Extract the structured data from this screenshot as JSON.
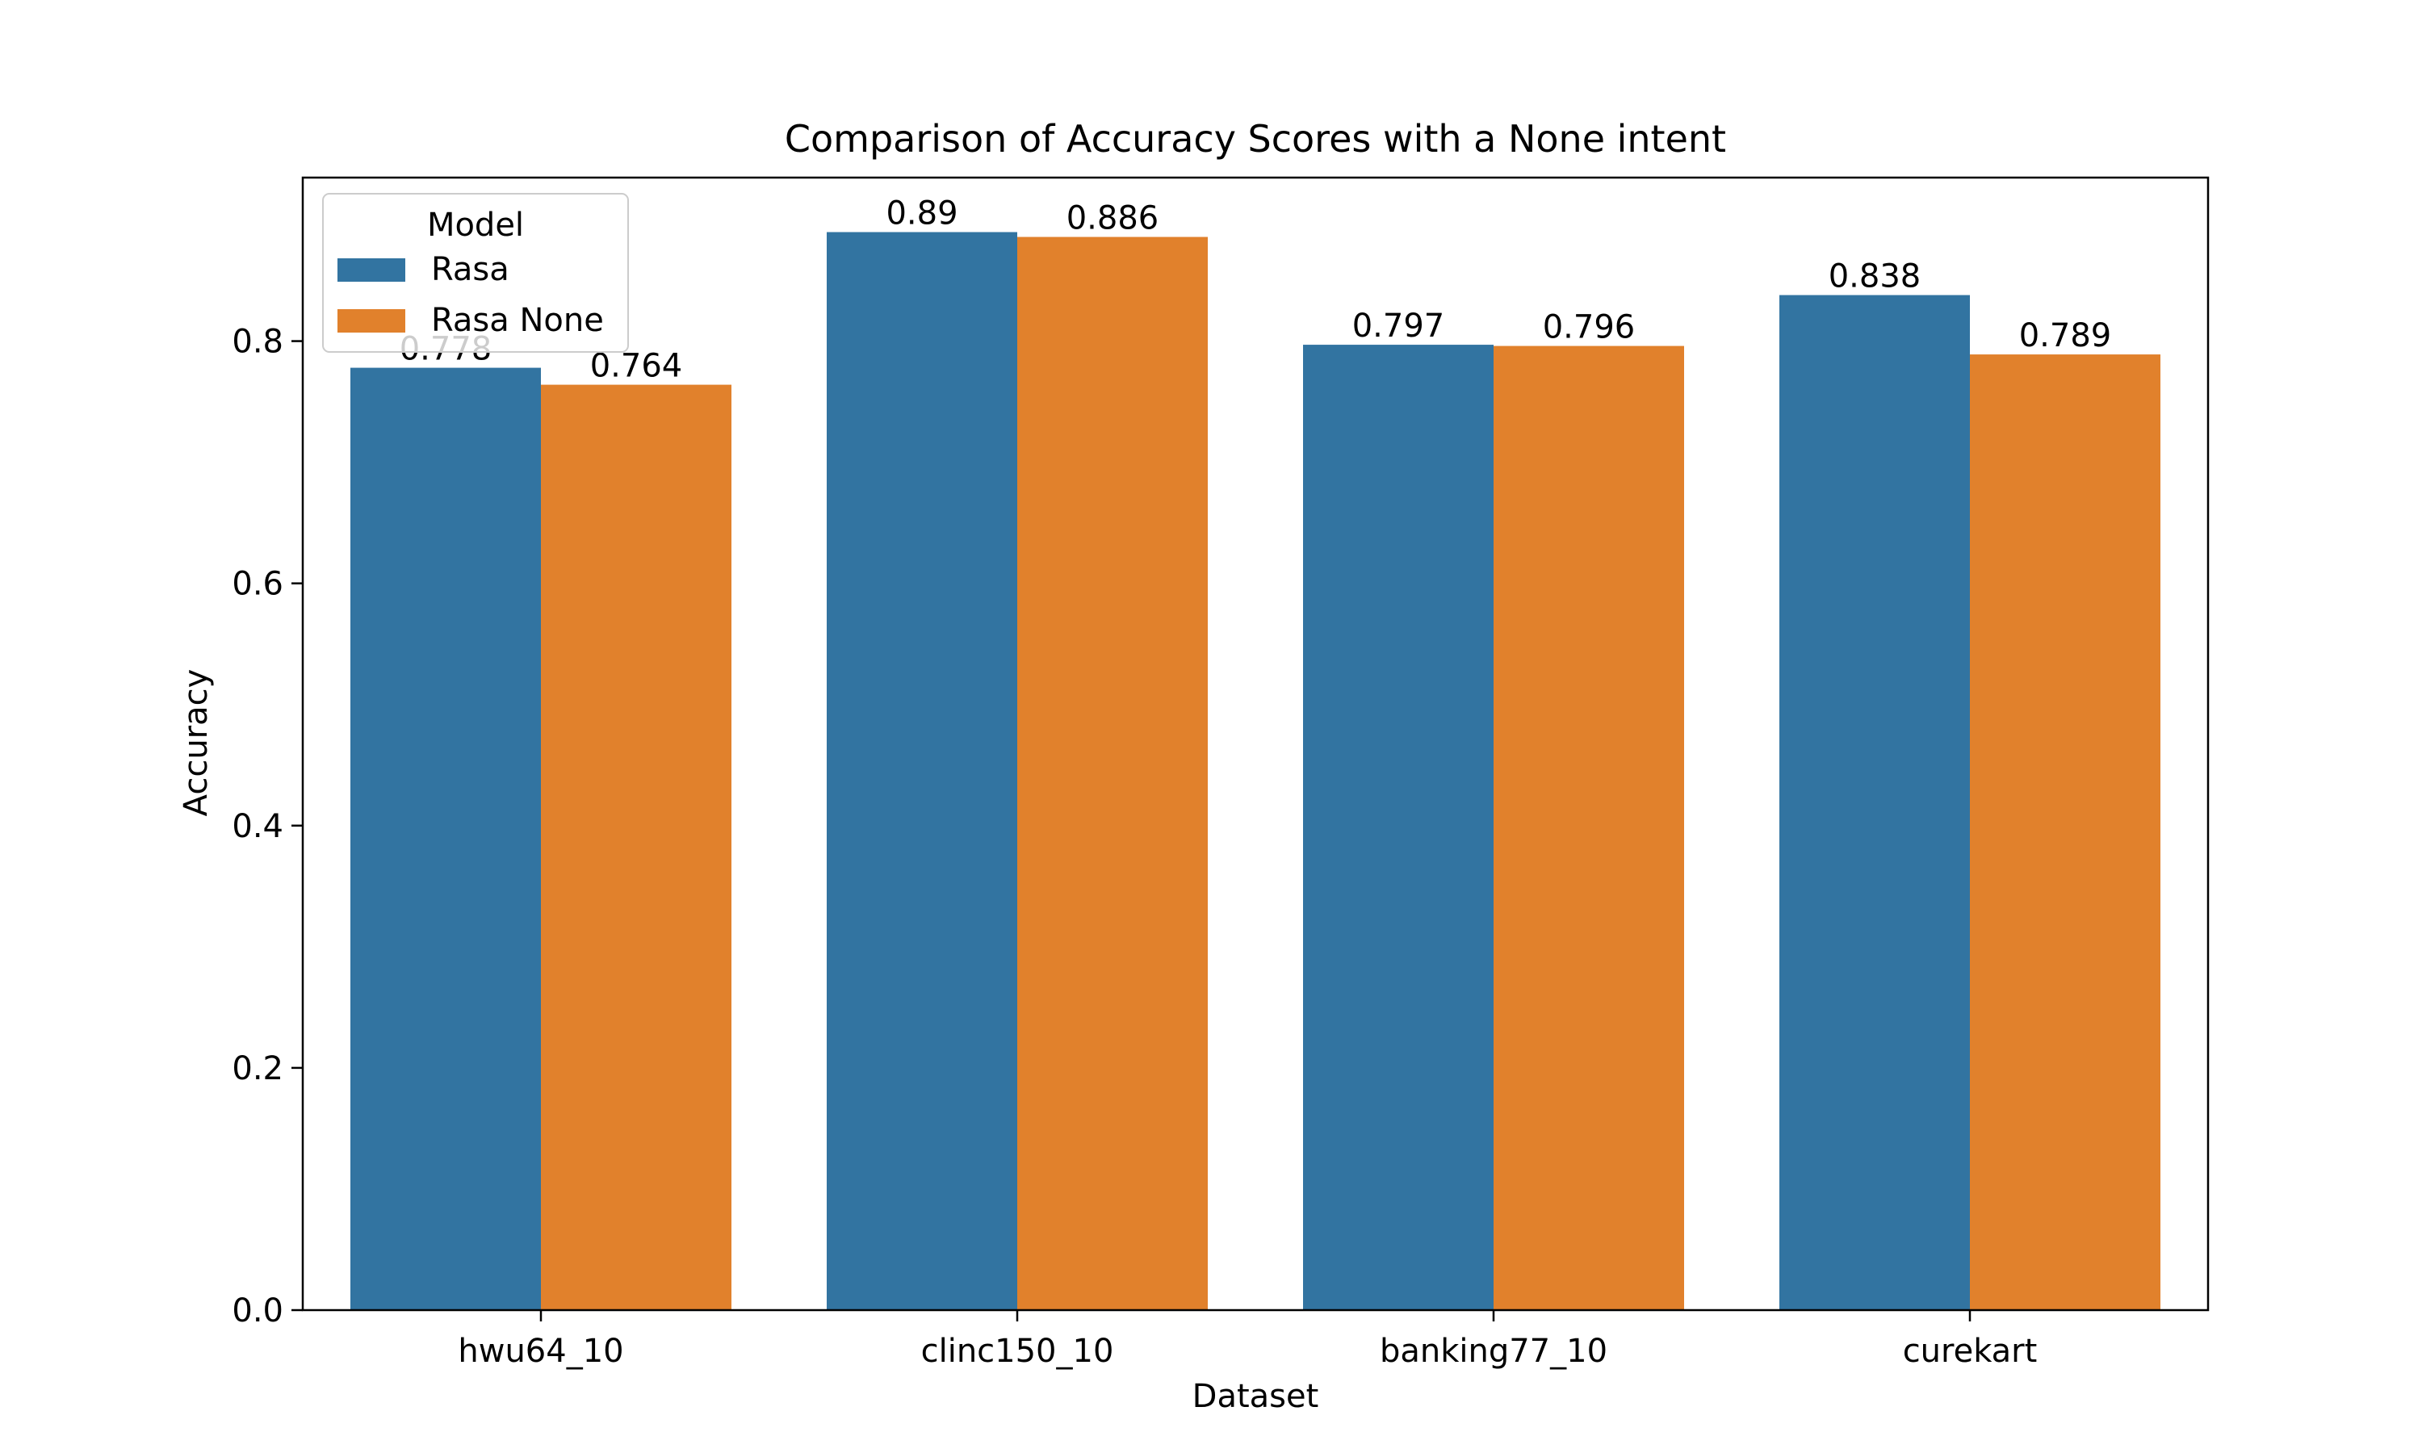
{
  "chart_data": {
    "type": "bar",
    "title": "Comparison of Accuracy Scores with a None intent",
    "xlabel": "Dataset",
    "ylabel": "Accuracy",
    "categories": [
      "hwu64_10",
      "clinc150_10",
      "banking77_10",
      "curekart"
    ],
    "series": [
      {
        "name": "Rasa",
        "color": "#3274a1",
        "values": [
          0.778,
          0.89,
          0.797,
          0.838
        ],
        "labels": [
          "0.778",
          "0.89",
          "0.797",
          "0.838"
        ]
      },
      {
        "name": "Rasa None",
        "color": "#e1812c",
        "values": [
          0.764,
          0.886,
          0.796,
          0.789
        ],
        "labels": [
          "0.764",
          "0.886",
          "0.796",
          "0.789"
        ]
      }
    ],
    "ylim": [
      0,
      0.935
    ],
    "yticks": [
      0.0,
      0.2,
      0.4,
      0.6,
      0.8
    ],
    "ytick_labels": [
      "0.0",
      "0.2",
      "0.4",
      "0.6",
      "0.8"
    ],
    "legend": {
      "title": "Model",
      "placement": "top-left"
    },
    "grid": false
  }
}
